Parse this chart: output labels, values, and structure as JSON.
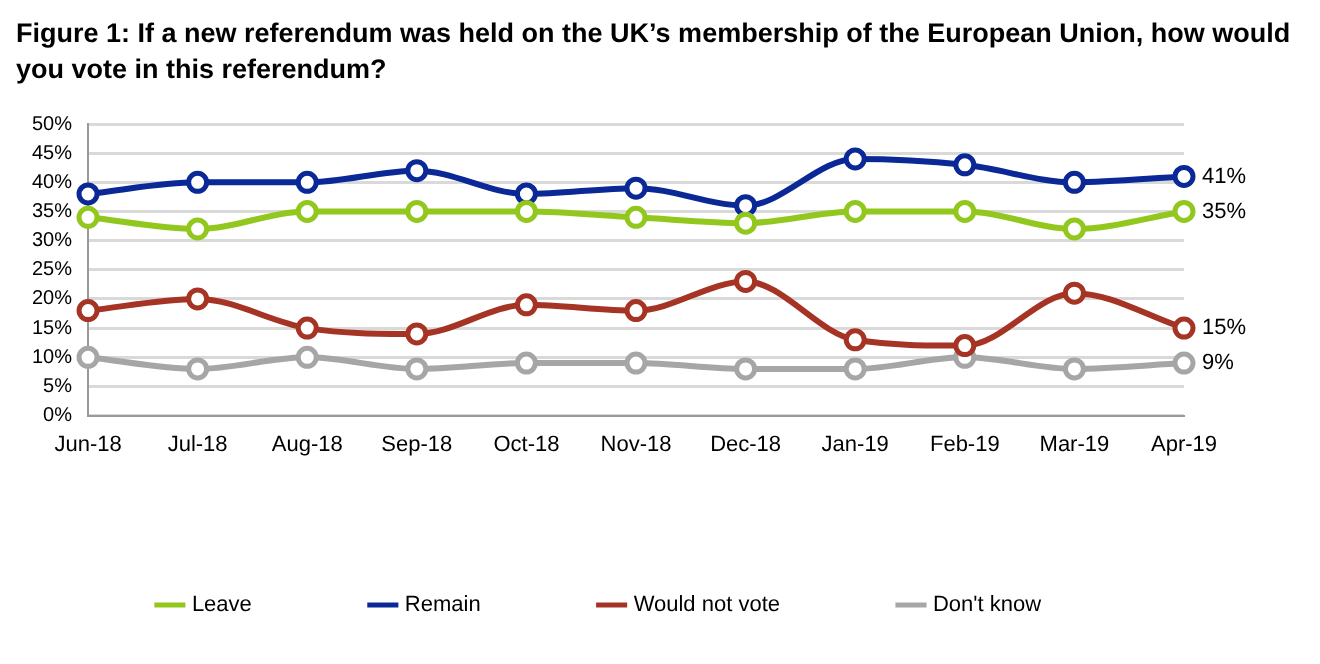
{
  "chart_data": {
    "type": "line",
    "title": "Figure 1: If a new referendum was held on the UK’s membership of the European Union, how would you vote in this referendum?",
    "categories": [
      "Jun-18",
      "Jul-18",
      "Aug-18",
      "Sep-18",
      "Oct-18",
      "Nov-18",
      "Dec-18",
      "Jan-19",
      "Feb-19",
      "Mar-19",
      "Apr-19"
    ],
    "series": [
      {
        "name": "Leave",
        "color": "#92c71d",
        "values": [
          34,
          32,
          35,
          35,
          35,
          34,
          33,
          35,
          35,
          32,
          35
        ],
        "value_labels": [
          null,
          null,
          null,
          null,
          null,
          null,
          null,
          null,
          null,
          null,
          "35%"
        ]
      },
      {
        "name": "Remain",
        "color": "#0a2896",
        "values": [
          38,
          40,
          40,
          42,
          38,
          39,
          36,
          44,
          43,
          40,
          41
        ],
        "value_labels": [
          null,
          null,
          null,
          null,
          null,
          null,
          null,
          null,
          null,
          null,
          "41%"
        ]
      },
      {
        "name": "Would not vote",
        "color": "#a53424",
        "values": [
          18,
          20,
          15,
          14,
          19,
          18,
          23,
          13,
          12,
          21,
          15
        ],
        "value_labels": [
          null,
          null,
          null,
          null,
          null,
          null,
          null,
          null,
          null,
          null,
          "15%"
        ]
      },
      {
        "name": "Don't know",
        "color": "#a6a6a6",
        "values": [
          10,
          8,
          10,
          8,
          9,
          9,
          8,
          8,
          10,
          8,
          9
        ],
        "value_labels": [
          null,
          null,
          null,
          null,
          null,
          null,
          null,
          null,
          null,
          null,
          "9%"
        ]
      }
    ],
    "ylim": [
      0,
      50
    ],
    "yticks": [
      {
        "value": 0,
        "label": "0%"
      },
      {
        "value": 5,
        "label": "5%"
      },
      {
        "value": 10,
        "label": "10%"
      },
      {
        "value": 15,
        "label": "15%"
      },
      {
        "value": 20,
        "label": "20%"
      },
      {
        "value": 25,
        "label": "25%"
      },
      {
        "value": 30,
        "label": "30%"
      },
      {
        "value": 35,
        "label": "35%"
      },
      {
        "value": 40,
        "label": "40%"
      },
      {
        "value": 45,
        "label": "45%"
      },
      {
        "value": 50,
        "label": "50%"
      }
    ],
    "grid": "y",
    "legend": "bottom",
    "marker": "circle",
    "line_style": "solid"
  }
}
